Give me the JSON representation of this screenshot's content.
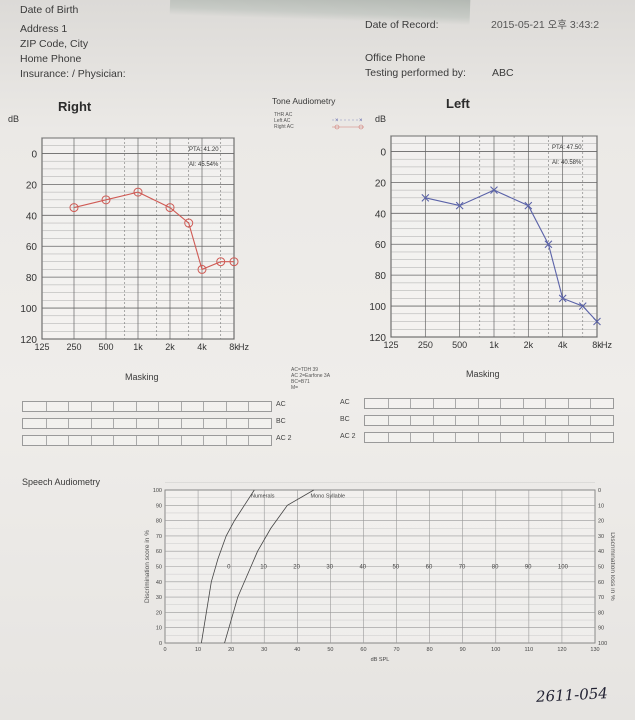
{
  "header": {
    "date_of_birth_label": "Date of Birth",
    "address_label": "Address 1",
    "zip_label": "ZIP Code, City",
    "home_phone_label": "Home Phone",
    "insurance_label": "Insurance: / Physician:",
    "date_of_record_label": "Date of Record:",
    "date_of_record_value": "2015-05-21 오후 3:43:2",
    "office_phone_label": "Office Phone",
    "testing_label": "Testing performed by:",
    "testing_value": "ABC"
  },
  "tone_audiometry": {
    "title": "Tone Audiometry",
    "legend": [
      "THR AC",
      "Left AC",
      "Right AC"
    ],
    "right_title": "Right",
    "left_title": "Left",
    "db_label": "dB",
    "hz_label": "Hz"
  },
  "chart_data": [
    {
      "type": "line",
      "title": "Right",
      "ylabel": "dB",
      "xlabel": "Hz",
      "x_ticks": [
        "125",
        "250",
        "500",
        "1k",
        "2k",
        "4k",
        "8k"
      ],
      "y_ticks": [
        "0",
        "20",
        "40",
        "60",
        "80",
        "100",
        "120"
      ],
      "ylim": [
        -10,
        120
      ],
      "y_inverted": true,
      "pta": "PTA: 41.20",
      "ai": "AI: 45.54%",
      "color": "#cf5b55",
      "marker": "circle",
      "series": [
        {
          "x": [
            250,
            500,
            1000,
            2000,
            3000,
            4000,
            6000,
            8000
          ],
          "values": [
            35,
            30,
            25,
            35,
            45,
            75,
            70,
            70
          ]
        }
      ]
    },
    {
      "type": "line",
      "title": "Left",
      "ylabel": "dB",
      "xlabel": "Hz",
      "x_ticks": [
        "125",
        "250",
        "500",
        "1k",
        "2k",
        "4k",
        "8k"
      ],
      "y_ticks": [
        "0",
        "20",
        "40",
        "60",
        "80",
        "100",
        "120"
      ],
      "ylim": [
        -10,
        120
      ],
      "y_inverted": true,
      "pta": "PTA: 47.50",
      "ai": "AI: 40.58%",
      "color": "#5a62a8",
      "marker": "cross",
      "series": [
        {
          "x": [
            250,
            500,
            1000,
            2000,
            3000,
            4000,
            6000,
            8000
          ],
          "values": [
            30,
            35,
            25,
            35,
            60,
            95,
            100,
            110
          ]
        }
      ]
    },
    {
      "type": "line",
      "title": "Speech Audiometry",
      "ylabel": "Discrimination score in %",
      "y2label": "Discrimination loss in %",
      "xlabel": "dB SPL",
      "x_ticks": [
        "0",
        "10",
        "20",
        "30",
        "40",
        "50",
        "60",
        "70",
        "80",
        "90",
        "100",
        "110",
        "120",
        "130"
      ],
      "y_ticks": [
        "0",
        "10",
        "20",
        "30",
        "40",
        "50",
        "60",
        "70",
        "80",
        "90",
        "100"
      ],
      "inner_ticks": [
        "0",
        "10",
        "20",
        "30",
        "40",
        "50",
        "60",
        "70",
        "80",
        "90",
        "100"
      ],
      "xlim": [
        0,
        130
      ],
      "ylim": [
        0,
        100
      ],
      "series": [
        {
          "name": "Numerals",
          "x": [
            11,
            12.5,
            14,
            16,
            18.5,
            21,
            24,
            27
          ],
          "values": [
            0,
            20,
            40,
            55,
            70,
            80,
            90,
            100
          ]
        },
        {
          "name": "Mono Syllable",
          "x": [
            18,
            20,
            22,
            25,
            28,
            32,
            37,
            45
          ],
          "values": [
            0,
            15,
            30,
            45,
            60,
            75,
            90,
            100
          ]
        }
      ]
    }
  ],
  "masking": {
    "label": "Masking",
    "center_note": [
      "AC=TDH 39",
      "AC 2=Earfone 3A",
      "BC=B71",
      "M="
    ],
    "right_rows": [
      "AC",
      "BC",
      "AC 2"
    ],
    "left_rows": [
      "AC",
      "BC",
      "AC 2"
    ]
  },
  "speech": {
    "title": "Speech Audiometry"
  },
  "footer": {
    "signature": "2611-054"
  }
}
